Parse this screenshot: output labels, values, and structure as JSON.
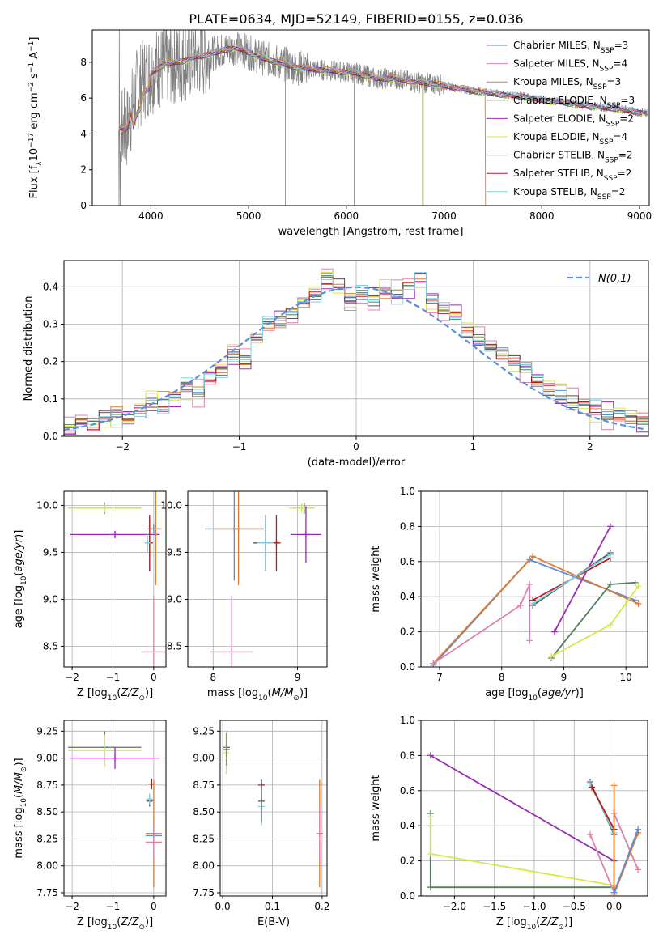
{
  "title": "PLATE=0634, MJD=52149, FIBERID=0155, z=0.036",
  "colors": {
    "chabrier_miles": "#5b8fd9",
    "salpeter_miles": "#e07fb0",
    "kroupa_miles": "#e07b2b",
    "chabrier_elodie": "#4f7f5c",
    "salpeter_elodie": "#9a2bb5",
    "kroupa_elodie": "#d6e84a",
    "chabrier_stelib": "#555555",
    "salpeter_stelib": "#b51b1b",
    "kroupa_stelib": "#7fd2e0",
    "data": "#808080",
    "grid": "#b0b0b0"
  },
  "chart_data": [
    {
      "id": "spectrum",
      "type": "line",
      "xlabel": "wavelength [Angstrom, rest frame]",
      "ylabel": "Flux [f_λ 10^-17 erg cm^-2 s^-1 A^-1]",
      "xlim": [
        3400,
        9100
      ],
      "ylim": [
        0,
        9.8
      ],
      "xticks": [
        4000,
        5000,
        6000,
        7000,
        8000,
        9000
      ],
      "yticks": [
        0,
        2,
        4,
        6,
        8
      ],
      "grid": false,
      "legend_position": "top-right",
      "legend": [
        {
          "key": "chabrier_miles",
          "label": "Chabrier MILES, N",
          "sub": "SSP",
          "suffix": "=3"
        },
        {
          "key": "salpeter_miles",
          "label": "Salpeter MILES, N",
          "sub": "SSP",
          "suffix": "=4"
        },
        {
          "key": "kroupa_miles",
          "label": "Kroupa MILES, N",
          "sub": "SSP",
          "suffix": "=3"
        },
        {
          "key": "chabrier_elodie",
          "label": "Chabrier ELODIE, N",
          "sub": "SSP",
          "suffix": "=3"
        },
        {
          "key": "salpeter_elodie",
          "label": "Salpeter ELODIE, N",
          "sub": "SSP",
          "suffix": "=2"
        },
        {
          "key": "kroupa_elodie",
          "label": "Kroupa ELODIE, N",
          "sub": "SSP",
          "suffix": "=4"
        },
        {
          "key": "chabrier_stelib",
          "label": "Chabrier STELIB, N",
          "sub": "SSP",
          "suffix": "=2"
        },
        {
          "key": "salpeter_stelib",
          "label": "Salpeter STELIB, N",
          "sub": "SSP",
          "suffix": "=2"
        },
        {
          "key": "kroupa_stelib",
          "label": "Kroupa STELIB, N",
          "sub": "SSP",
          "suffix": "=2"
        }
      ],
      "continuum": {
        "x": [
          3680,
          3750,
          3850,
          3950,
          4050,
          4150,
          4250,
          4350,
          4450,
          4550,
          4650,
          4750,
          4850,
          4950,
          5100,
          5300,
          5500,
          5700,
          5900,
          6100,
          6300,
          6500,
          6700,
          6900,
          7100,
          7300,
          7450,
          7600,
          7800,
          8000,
          8200,
          8400,
          8600,
          8800,
          9000,
          9080
        ],
        "y": [
          4.3,
          4.2,
          6.4,
          7.2,
          7.6,
          7.9,
          8.0,
          8.1,
          8.3,
          8.4,
          8.5,
          8.7,
          8.8,
          8.7,
          8.3,
          8.0,
          7.7,
          7.6,
          7.5,
          7.4,
          7.1,
          7.1,
          6.9,
          6.8,
          6.6,
          6.4,
          6.3,
          6.2,
          6.1,
          5.9,
          5.8,
          5.6,
          5.5,
          5.4,
          5.2,
          5.2
        ]
      }
    },
    {
      "id": "residuals",
      "type": "histogram",
      "xlabel": "(data-model)/error",
      "ylabel": "Normed distribution",
      "xlim": [
        -2.5,
        2.5
      ],
      "ylim": [
        0,
        0.47
      ],
      "xticks": [
        -2,
        -1,
        0,
        1,
        2
      ],
      "yticks": [
        0.0,
        0.1,
        0.2,
        0.3,
        0.4
      ],
      "grid": true,
      "legend_position": "top-right",
      "normal_label": "N(0,1)",
      "bin_edges": [
        -2.5,
        -2.4,
        -2.3,
        -2.2,
        -2.1,
        -2.0,
        -1.9,
        -1.8,
        -1.7,
        -1.6,
        -1.5,
        -1.4,
        -1.3,
        -1.2,
        -1.1,
        -1.0,
        -0.9,
        -0.8,
        -0.7,
        -0.6,
        -0.5,
        -0.4,
        -0.3,
        -0.2,
        -0.1,
        0.0,
        0.1,
        0.2,
        0.3,
        0.4,
        0.5,
        0.6,
        0.7,
        0.8,
        0.9,
        1.0,
        1.1,
        1.2,
        1.3,
        1.4,
        1.5,
        1.6,
        1.7,
        1.8,
        1.9,
        2.0,
        2.1,
        2.2,
        2.3,
        2.4,
        2.5
      ],
      "bins_base": [
        0.02,
        0.04,
        0.03,
        0.05,
        0.06,
        0.05,
        0.07,
        0.09,
        0.08,
        0.1,
        0.13,
        0.12,
        0.16,
        0.18,
        0.22,
        0.2,
        0.26,
        0.3,
        0.31,
        0.33,
        0.36,
        0.38,
        0.42,
        0.4,
        0.36,
        0.38,
        0.37,
        0.39,
        0.38,
        0.4,
        0.42,
        0.36,
        0.34,
        0.33,
        0.28,
        0.26,
        0.24,
        0.22,
        0.2,
        0.18,
        0.15,
        0.13,
        0.11,
        0.09,
        0.08,
        0.07,
        0.06,
        0.06,
        0.05,
        0.04
      ],
      "offsets": {
        "chabrier_miles": 0.005,
        "salpeter_miles": 0.03,
        "kroupa_miles": -0.01,
        "chabrier_elodie": -0.005,
        "salpeter_elodie": 0.02,
        "kroupa_elodie": -0.02,
        "chabrier_stelib": 0.01,
        "salpeter_stelib": 0.0,
        "kroupa_stelib": -0.015
      }
    },
    {
      "id": "age_vs_Z",
      "type": "scatter",
      "xlabel": "Z [log10(Z/Z⊙)]",
      "ylabel": "age  [log10(age/yr)]",
      "xlim": [
        -2.2,
        0.3
      ],
      "ylim": [
        8.28,
        10.15
      ],
      "xticks": [
        -2,
        -1,
        0
      ],
      "yticks": [
        8.5,
        9.0,
        9.5,
        10.0
      ],
      "grid": true,
      "points": [
        {
          "k": "chabrier_elodie",
          "x": -1.2,
          "y": 9.97,
          "xe": 0.9,
          "ye": 0.06
        },
        {
          "k": "kroupa_elodie",
          "x": -1.2,
          "y": 9.97,
          "xe": 0.9,
          "ye": 0.05
        },
        {
          "k": "salpeter_elodie",
          "x": -0.95,
          "y": 9.69,
          "xe": 1.1,
          "ye": 0.04
        },
        {
          "k": "chabrier_miles",
          "x": 0.0,
          "y": 9.75,
          "xe": 0.15,
          "ye": 0.05
        },
        {
          "k": "kroupa_miles",
          "x": 0.05,
          "y": 9.75,
          "xe": 0.15,
          "ye": 0.6
        },
        {
          "k": "chabrier_stelib",
          "x": -0.1,
          "y": 9.6,
          "xe": 0.05,
          "ye": 0.3
        },
        {
          "k": "salpeter_stelib",
          "x": -0.1,
          "y": 9.6,
          "xe": 0.05,
          "ye": 0.3
        },
        {
          "k": "kroupa_stelib",
          "x": -0.15,
          "y": 9.6,
          "xe": 0.05,
          "ye": 0.1
        },
        {
          "k": "salpeter_miles",
          "x": 0.0,
          "y": 8.44,
          "xe": 0.3,
          "ye": 0.6
        }
      ]
    },
    {
      "id": "age_vs_mass",
      "type": "scatter",
      "xlabel": "mass [log10(M/M⊙)]",
      "ylabel": "",
      "xlim": [
        7.7,
        9.35
      ],
      "ylim": [
        8.28,
        10.15
      ],
      "xticks": [
        8,
        9
      ],
      "yticks": [
        8.5,
        9.0,
        9.5,
        10.0
      ],
      "grid": true,
      "points": [
        {
          "k": "chabrier_miles",
          "x": 8.25,
          "y": 9.75,
          "xe": 0.35,
          "ye": 0.55
        },
        {
          "k": "kroupa_miles",
          "x": 8.3,
          "y": 9.75,
          "xe": 0.3,
          "ye": 0.6
        },
        {
          "k": "salpeter_miles",
          "x": 8.22,
          "y": 8.44,
          "xe": 0.25,
          "ye": 0.6
        },
        {
          "k": "chabrier_elodie",
          "x": 9.08,
          "y": 9.97,
          "xe": 0.12,
          "ye": 0.06
        },
        {
          "k": "kroupa_elodie",
          "x": 9.05,
          "y": 9.97,
          "xe": 0.15,
          "ye": 0.05
        },
        {
          "k": "salpeter_elodie",
          "x": 9.1,
          "y": 9.69,
          "xe": 0.18,
          "ye": 0.3
        },
        {
          "k": "chabrier_stelib",
          "x": 8.62,
          "y": 9.6,
          "xe": 0.15,
          "ye": 0.3
        },
        {
          "k": "salpeter_stelib",
          "x": 8.75,
          "y": 9.6,
          "xe": 0.05,
          "ye": 0.3
        },
        {
          "k": "kroupa_stelib",
          "x": 8.62,
          "y": 9.6,
          "xe": 0.1,
          "ye": 0.3
        }
      ]
    },
    {
      "id": "weight_vs_age",
      "type": "line",
      "xlabel": "age  [log10(age/yr)]",
      "ylabel": "mass weight",
      "xlim": [
        6.7,
        10.35
      ],
      "ylim": [
        0,
        1
      ],
      "xticks": [
        7,
        8,
        9,
        10
      ],
      "yticks": [
        0.0,
        0.2,
        0.4,
        0.6,
        0.8,
        1.0
      ],
      "grid": true,
      "series": [
        {
          "k": "chabrier_miles",
          "x": [
            6.9,
            8.45,
            10.15
          ],
          "y": [
            0.01,
            0.61,
            0.38
          ]
        },
        {
          "k": "kroupa_miles",
          "x": [
            6.9,
            8.5,
            10.2
          ],
          "y": [
            0.02,
            0.63,
            0.36
          ]
        },
        {
          "k": "salpeter_miles",
          "x": [
            6.9,
            8.3,
            8.45,
            8.45
          ],
          "y": [
            0.02,
            0.35,
            0.47,
            0.15
          ]
        },
        {
          "k": "chabrier_elodie",
          "x": [
            8.8,
            9.75,
            10.15
          ],
          "y": [
            0.05,
            0.47,
            0.48
          ]
        },
        {
          "k": "kroupa_elodie",
          "x": [
            8.8,
            9.75,
            10.2
          ],
          "y": [
            0.06,
            0.24,
            0.46
          ]
        },
        {
          "k": "salpeter_elodie",
          "x": [
            8.85,
            9.75
          ],
          "y": [
            0.2,
            0.8
          ]
        },
        {
          "k": "chabrier_stelib",
          "x": [
            8.5,
            9.75
          ],
          "y": [
            0.35,
            0.65
          ]
        },
        {
          "k": "salpeter_stelib",
          "x": [
            8.5,
            9.75
          ],
          "y": [
            0.38,
            0.62
          ]
        },
        {
          "k": "kroupa_stelib",
          "x": [
            8.5,
            9.75
          ],
          "y": [
            0.36,
            0.64
          ]
        }
      ]
    },
    {
      "id": "mass_vs_Z",
      "type": "scatter",
      "xlabel": "Z [log10(Z/Z⊙)]",
      "ylabel": "mass [log10(M/M⊙)]",
      "xlim": [
        -2.2,
        0.3
      ],
      "ylim": [
        7.72,
        9.35
      ],
      "xticks": [
        -2,
        -1,
        0
      ],
      "yticks": [
        7.75,
        8.0,
        8.25,
        8.5,
        8.75,
        9.0,
        9.25
      ],
      "grid": true,
      "points": [
        {
          "k": "chabrier_elodie",
          "x": -1.2,
          "y": 9.1,
          "xe": 0.9,
          "ye": 0.15
        },
        {
          "k": "kroupa_elodie",
          "x": -1.2,
          "y": 9.07,
          "xe": 0.9,
          "ye": 0.15
        },
        {
          "k": "salpeter_elodie",
          "x": -0.95,
          "y": 9.0,
          "xe": 1.1,
          "ye": 0.1
        },
        {
          "k": "salpeter_stelib",
          "x": -0.05,
          "y": 8.76,
          "xe": 0.05,
          "ye": 0.05
        },
        {
          "k": "chabrier_stelib",
          "x": -0.1,
          "y": 8.6,
          "xe": 0.05,
          "ye": 0.05
        },
        {
          "k": "kroupa_stelib",
          "x": -0.1,
          "y": 8.62,
          "xe": 0.05,
          "ye": 0.05
        },
        {
          "k": "kroupa_miles",
          "x": 0.0,
          "y": 8.3,
          "xe": 0.2,
          "ye": 0.5
        },
        {
          "k": "chabrier_miles",
          "x": 0.0,
          "y": 8.28,
          "xe": 0.2,
          "ye": 0.05
        },
        {
          "k": "salpeter_miles",
          "x": 0.0,
          "y": 8.22,
          "xe": 0.2,
          "ye": 0.15
        }
      ]
    },
    {
      "id": "mass_vs_ebv",
      "type": "scatter",
      "xlabel": "E(B-V)",
      "ylabel": "",
      "xlim": [
        -0.005,
        0.21
      ],
      "ylim": [
        7.72,
        9.35
      ],
      "xticks": [
        0.0,
        0.1,
        0.2
      ],
      "yticks": [
        7.75,
        8.0,
        8.25,
        8.5,
        8.75,
        9.0,
        9.25
      ],
      "grid": true,
      "points": [
        {
          "k": "salpeter_elodie",
          "x": 0.008,
          "y": 9.1,
          "xe": 0.0,
          "ye": 0.15
        },
        {
          "k": "kroupa_elodie",
          "x": 0.007,
          "y": 9.05,
          "xe": 0.0,
          "ye": 0.2
        },
        {
          "k": "chabrier_elodie",
          "x": 0.008,
          "y": 9.08,
          "xe": 0.0,
          "ye": 0.15
        },
        {
          "k": "salpeter_stelib",
          "x": 0.078,
          "y": 8.75,
          "xe": 0.0,
          "ye": 0.05
        },
        {
          "k": "kroupa_stelib",
          "x": 0.078,
          "y": 8.55,
          "xe": 0.0,
          "ye": 0.18
        },
        {
          "k": "chabrier_stelib",
          "x": 0.078,
          "y": 8.6,
          "xe": 0.0,
          "ye": 0.2
        },
        {
          "k": "kroupa_miles",
          "x": 0.195,
          "y": 8.3,
          "xe": 0.0,
          "ye": 0.5
        },
        {
          "k": "salpeter_miles",
          "x": 0.195,
          "y": 8.3,
          "xe": 0.0,
          "ye": 0.25
        }
      ]
    },
    {
      "id": "weight_vs_Z",
      "type": "line",
      "xlabel": "Z [log10(Z/Z⊙)]",
      "ylabel": "mass weight",
      "xlim": [
        -2.42,
        0.42
      ],
      "ylim": [
        0,
        1
      ],
      "xticks": [
        -2.0,
        -1.5,
        -1.0,
        -0.5,
        0.0
      ],
      "yticks": [
        0.0,
        0.2,
        0.4,
        0.6,
        0.8,
        1.0
      ],
      "grid": true,
      "series": [
        {
          "k": "salpeter_elodie",
          "x": [
            -2.3,
            0.0
          ],
          "y": [
            0.8,
            0.2
          ]
        },
        {
          "k": "chabrier_elodie",
          "x": [
            -2.3,
            -2.3,
            0.0
          ],
          "y": [
            0.47,
            0.05,
            0.05
          ]
        },
        {
          "k": "kroupa_elodie",
          "x": [
            -2.3,
            -2.3,
            0.0,
            0.0
          ],
          "y": [
            0.45,
            0.24,
            0.06,
            0.05
          ]
        },
        {
          "k": "chabrier_stelib",
          "x": [
            -0.3,
            0.0
          ],
          "y": [
            0.65,
            0.35
          ]
        },
        {
          "k": "kroupa_stelib",
          "x": [
            -0.3,
            0.0
          ],
          "y": [
            0.64,
            0.36
          ]
        },
        {
          "k": "salpeter_stelib",
          "x": [
            -0.28,
            0.0
          ],
          "y": [
            0.62,
            0.38
          ]
        },
        {
          "k": "salpeter_miles",
          "x": [
            -0.3,
            0.0,
            0.0,
            0.3
          ],
          "y": [
            0.35,
            0.02,
            0.47,
            0.15
          ]
        },
        {
          "k": "kroupa_miles",
          "x": [
            0.0,
            0.0,
            0.3
          ],
          "y": [
            0.63,
            0.01,
            0.36
          ]
        },
        {
          "k": "chabrier_miles",
          "x": [
            0.0,
            0.3
          ],
          "y": [
            0.02,
            0.38
          ]
        }
      ]
    }
  ]
}
